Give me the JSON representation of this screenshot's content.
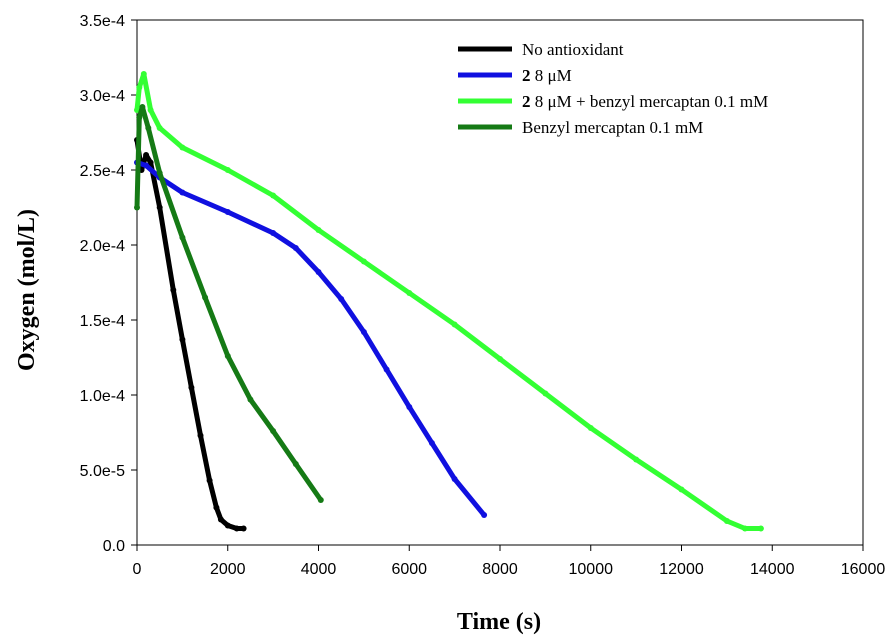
{
  "chart_data": {
    "type": "line",
    "title": "",
    "xlabel": "Time (s)",
    "ylabel": "Oxygen (mol/L)",
    "xlim": [
      0,
      16000
    ],
    "ylim": [
      0,
      0.00035
    ],
    "x_ticks": [
      0,
      2000,
      4000,
      6000,
      8000,
      10000,
      12000,
      14000,
      16000
    ],
    "x_tick_labels": [
      "0",
      "2000",
      "4000",
      "6000",
      "8000",
      "10000",
      "12000",
      "14000",
      "16000"
    ],
    "y_ticks": [
      0,
      5e-05,
      0.0001,
      0.00015,
      0.0002,
      0.00025,
      0.0003,
      0.00035
    ],
    "y_tick_labels": [
      "0.0",
      "5.0e-5",
      "1.0e-4",
      "1.5e-4",
      "2.0e-4",
      "2.5e-4",
      "3.0e-4",
      "3.5e-4"
    ],
    "grid": false,
    "legend_position": "top-right",
    "series": [
      {
        "name_prefix": "",
        "name": "No antioxidant",
        "color": "#000000",
        "points": [
          [
            0,
            0.00027
          ],
          [
            100,
            0.00025
          ],
          [
            200,
            0.00026
          ],
          [
            300,
            0.000255
          ],
          [
            500,
            0.000225
          ],
          [
            800,
            0.00017
          ],
          [
            1000,
            0.000137
          ],
          [
            1200,
            0.000105
          ],
          [
            1400,
            7.3e-05
          ],
          [
            1600,
            4.3e-05
          ],
          [
            1750,
            2.5e-05
          ],
          [
            1850,
            1.7e-05
          ],
          [
            2000,
            1.3e-05
          ],
          [
            2200,
            1.1e-05
          ],
          [
            2350,
            1.1e-05
          ]
        ]
      },
      {
        "name_prefix": "2",
        "name": "8 μM",
        "color": "#1010e0",
        "points": [
          [
            0,
            0.000255
          ],
          [
            200,
            0.000253
          ],
          [
            500,
            0.000245
          ],
          [
            1000,
            0.000235
          ],
          [
            2000,
            0.000222
          ],
          [
            3000,
            0.000208
          ],
          [
            3500,
            0.000198
          ],
          [
            4000,
            0.000182
          ],
          [
            4500,
            0.000164
          ],
          [
            5000,
            0.000142
          ],
          [
            5500,
            0.000117
          ],
          [
            6000,
            9.2e-05
          ],
          [
            6500,
            6.8e-05
          ],
          [
            7000,
            4.4e-05
          ],
          [
            7650,
            2e-05
          ]
        ]
      },
      {
        "name_prefix": "2",
        "name": "8 μM + benzyl mercaptan 0.1 mM",
        "color": "#33ff33",
        "points": [
          [
            0,
            0.00029
          ],
          [
            50,
            0.000305
          ],
          [
            150,
            0.000314
          ],
          [
            300,
            0.00029
          ],
          [
            500,
            0.000278
          ],
          [
            1000,
            0.000265
          ],
          [
            2000,
            0.00025
          ],
          [
            3000,
            0.000233
          ],
          [
            4000,
            0.00021
          ],
          [
            5000,
            0.000189
          ],
          [
            6000,
            0.000168
          ],
          [
            7000,
            0.000147
          ],
          [
            8000,
            0.000124
          ],
          [
            9000,
            0.000101
          ],
          [
            10000,
            7.8e-05
          ],
          [
            11000,
            5.7e-05
          ],
          [
            12000,
            3.7e-05
          ],
          [
            13000,
            1.6e-05
          ],
          [
            13400,
            1.1e-05
          ],
          [
            13750,
            1.1e-05
          ]
        ]
      },
      {
        "name_prefix": "",
        "name": "Benzyl mercaptan 0.1 mM",
        "color": "#157a15",
        "points": [
          [
            0,
            0.000225
          ],
          [
            50,
            0.000285
          ],
          [
            120,
            0.000292
          ],
          [
            250,
            0.000278
          ],
          [
            500,
            0.000248
          ],
          [
            1000,
            0.000205
          ],
          [
            1500,
            0.000165
          ],
          [
            2000,
            0.000126
          ],
          [
            2500,
            9.7e-05
          ],
          [
            3000,
            7.6e-05
          ],
          [
            3500,
            5.4e-05
          ],
          [
            4050,
            3e-05
          ]
        ]
      }
    ]
  }
}
